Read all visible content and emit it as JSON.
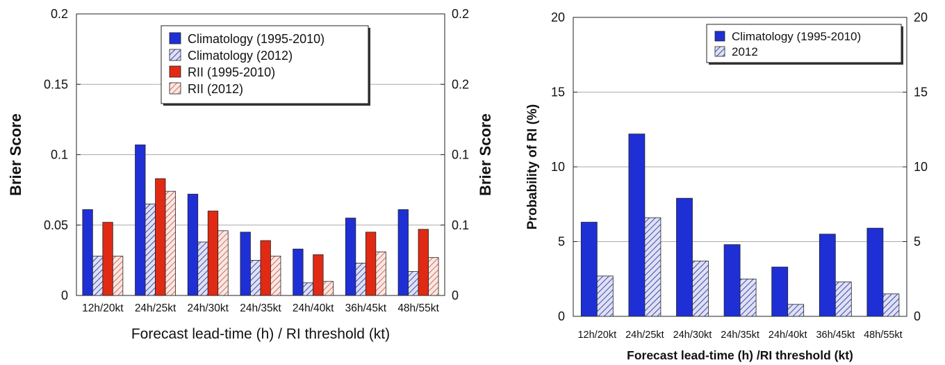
{
  "chart_data": [
    {
      "type": "bar",
      "title": "",
      "categories": [
        "12h/20kt",
        "24h/25kt",
        "24h/30kt",
        "24h/35kt",
        "24h/40kt",
        "36h/45kt",
        "48h/55kt"
      ],
      "xlabel": "Forecast lead-time (h) / RI threshold (kt)",
      "ylabel": "Brier Score",
      "ylabel_right": "Brier Score",
      "ylim": [
        0,
        0.2
      ],
      "yticks_left": [
        "0",
        "0.05",
        "0.1",
        "0.15",
        "0.2"
      ],
      "yticks_right": [
        "0",
        "0.1",
        "0.1",
        "0.2",
        "0.2"
      ],
      "grid": "horizontal",
      "legend_position": "top-right",
      "series": [
        {
          "name": "Climatology (1995-2010)",
          "values": [
            0.061,
            0.107,
            0.072,
            0.045,
            0.033,
            0.055,
            0.061
          ],
          "color": "#1f2fd6",
          "pattern": "solid"
        },
        {
          "name": "Climatology (2012)",
          "values": [
            0.028,
            0.065,
            0.038,
            0.025,
            0.009,
            0.023,
            0.017
          ],
          "color": "#3a46b8",
          "pattern": "hatch"
        },
        {
          "name": "RII (1995-2010)",
          "values": [
            0.052,
            0.083,
            0.06,
            0.039,
            0.029,
            0.045,
            0.047
          ],
          "color": "#e02a14",
          "pattern": "solid"
        },
        {
          "name": "RII (2012)",
          "values": [
            0.028,
            0.074,
            0.046,
            0.028,
            0.01,
            0.031,
            0.027
          ],
          "color": "#c24a3a",
          "pattern": "hatch"
        }
      ]
    },
    {
      "type": "bar",
      "title": "",
      "categories": [
        "12h/20kt",
        "24h/25kt",
        "24h/30kt",
        "24h/35kt",
        "24h/40kt",
        "36h/45kt",
        "48h/55kt"
      ],
      "xlabel": "Forecast lead-time (h) /RI threshold (kt)",
      "ylabel": "Probability of RI (%)",
      "ylim": [
        0,
        20
      ],
      "yticks_left": [
        "0",
        "5",
        "10",
        "15",
        "20"
      ],
      "yticks_right": [
        "0",
        "5",
        "10",
        "15",
        "20"
      ],
      "grid": "horizontal",
      "legend_position": "top-right",
      "series": [
        {
          "name": "Climatology (1995-2010)",
          "values": [
            6.3,
            12.2,
            7.9,
            4.8,
            3.3,
            5.5,
            5.9
          ],
          "color": "#1f2fd6",
          "pattern": "solid"
        },
        {
          "name": "2012",
          "values": [
            2.7,
            6.6,
            3.7,
            2.5,
            0.8,
            2.3,
            1.5
          ],
          "color": "#3a46b8",
          "pattern": "hatch"
        }
      ]
    }
  ]
}
